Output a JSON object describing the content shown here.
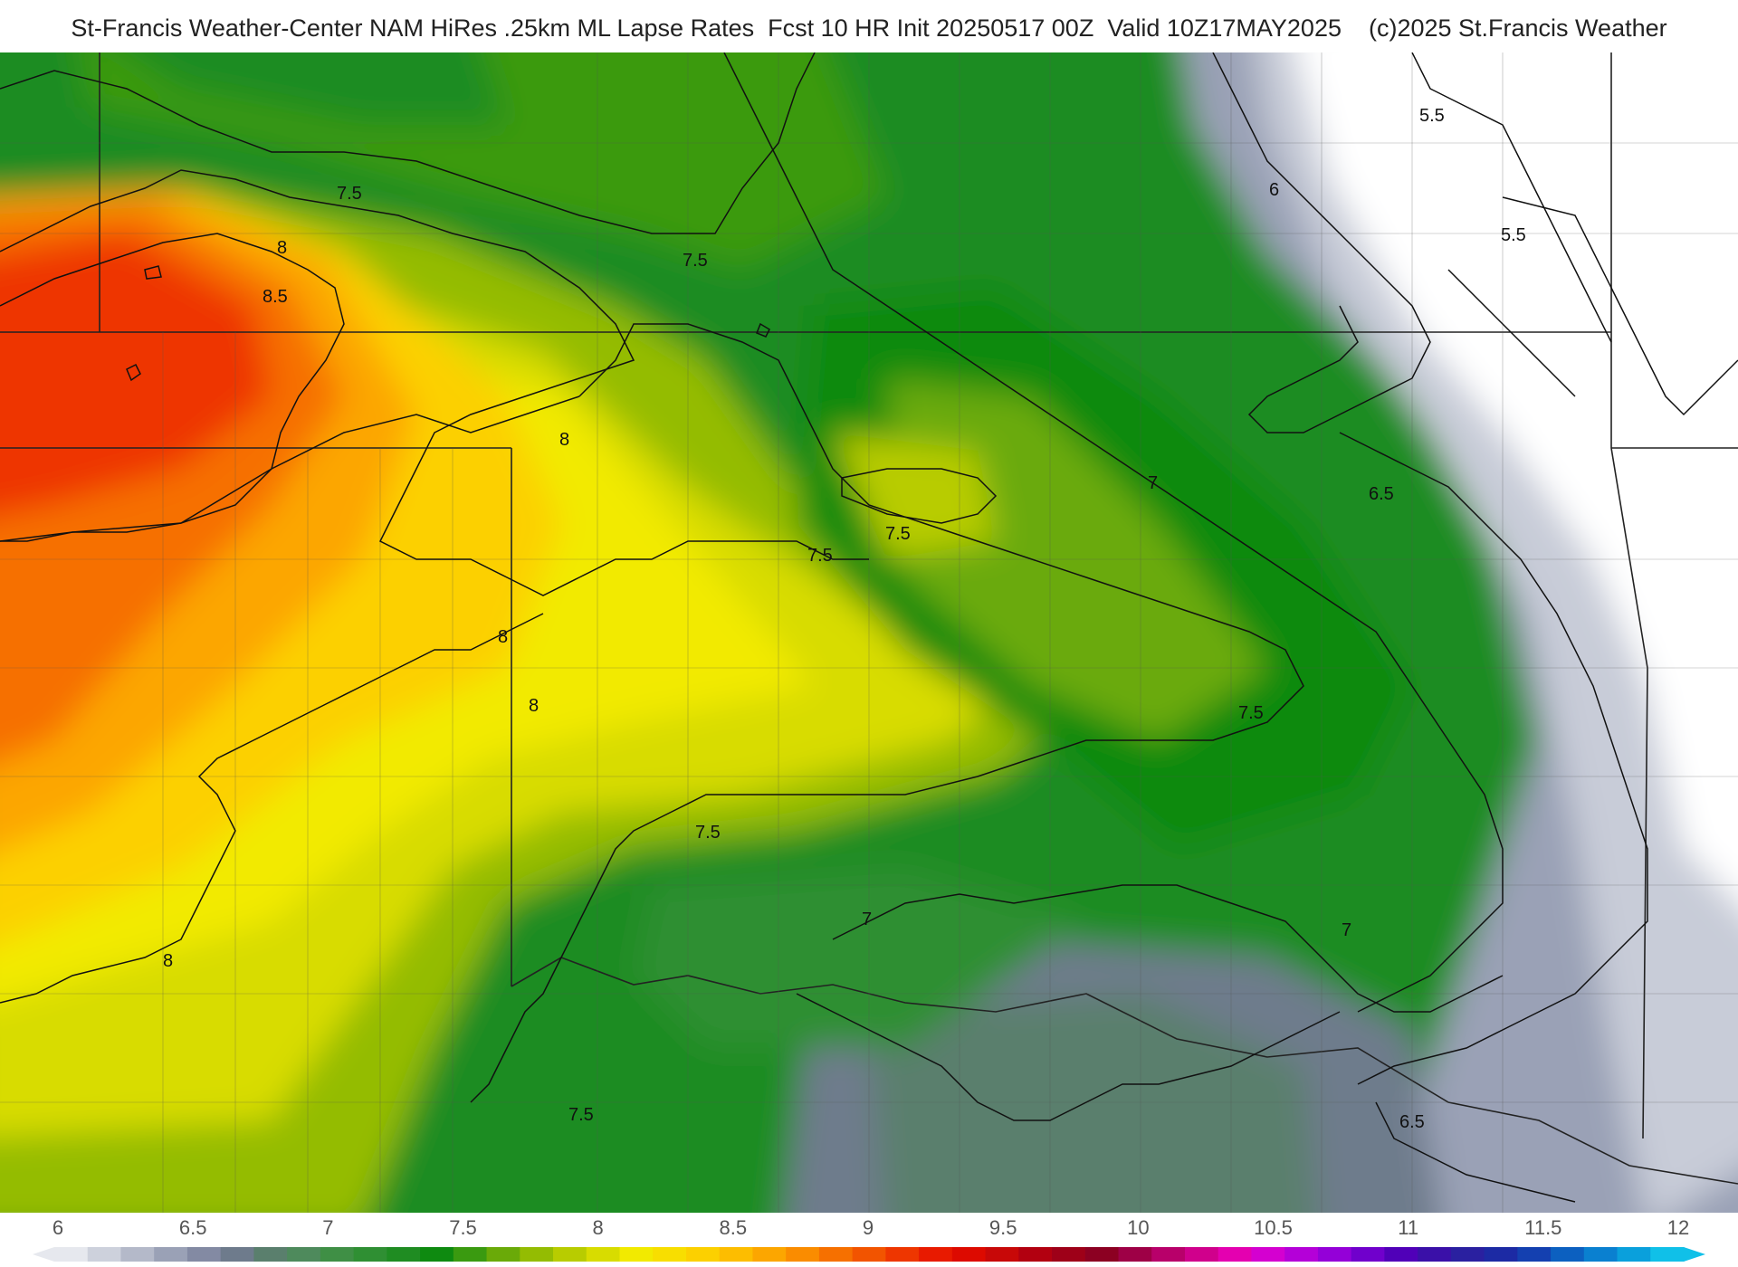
{
  "header": {
    "title": "St-Francis Weather-Center NAM HiRes .25km ML Lapse Rates  Fcst 10 HR Init 20250517 00Z  Valid 10Z17MAY2025    (c)2025 St.Francis Weather"
  },
  "map": {
    "contour_labels": [
      "5.5",
      "6",
      "5.5",
      "7.5",
      "8",
      "8.5",
      "7.5",
      "8",
      "7.5",
      "7",
      "7.5",
      "6.5",
      "8",
      "8",
      "7.5",
      "7.5",
      "7",
      "7",
      "8",
      "7.5",
      "6.5"
    ]
  },
  "colorbar": {
    "ticks": [
      "6",
      "6.5",
      "7",
      "7.5",
      "8",
      "8.5",
      "9",
      "9.5",
      "10",
      "10.5",
      "11",
      "11.5",
      "12"
    ],
    "colors": [
      "#e6e8ee",
      "#cdd1dc",
      "#b4b9c9",
      "#9aa1b6",
      "#838aa3",
      "#6e7b8c",
      "#5a7f6d",
      "#4e8a5c",
      "#3f8f45",
      "#2f8f33",
      "#1f8c22",
      "#0e8a10",
      "#3a9a10",
      "#6aaa08",
      "#94bc02",
      "#b8cc00",
      "#d8dc00",
      "#f2ea00",
      "#f8de00",
      "#fcd000",
      "#fdbd00",
      "#fca600",
      "#fa8c00",
      "#f67000",
      "#f25400",
      "#ee3600",
      "#e81a00",
      "#dd0a00",
      "#c80808",
      "#b20010",
      "#9e0018",
      "#8c0022",
      "#9e0046",
      "#b8006a",
      "#d0008c",
      "#e400b0",
      "#d400d0",
      "#b400d8",
      "#9400d8",
      "#7000cc",
      "#5000b8",
      "#3a10a8",
      "#2a20a0",
      "#1c2aa4",
      "#1440b0",
      "#0c60c0",
      "#0a80d0",
      "#0aa0dc",
      "#10c0e8"
    ]
  }
}
